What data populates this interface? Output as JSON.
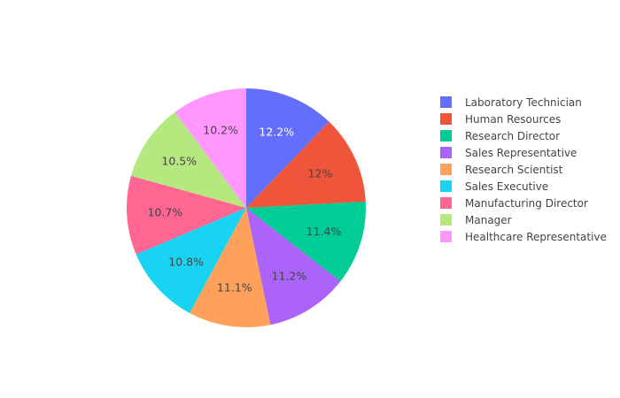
{
  "chart_data": {
    "type": "pie",
    "title": "",
    "legend_position": "right",
    "start_angle_deg": 90,
    "direction": "clockwise",
    "categories": [
      "Laboratory Technician",
      "Human Resources",
      "Research Director",
      "Sales Representative",
      "Research Scientist",
      "Sales Executive",
      "Manufacturing Director",
      "Manager",
      "Healthcare Representative"
    ],
    "values": [
      12.2,
      12.0,
      11.4,
      11.2,
      11.1,
      10.8,
      10.7,
      10.5,
      10.2
    ],
    "labels": [
      "12.2%",
      "12%",
      "11.4%",
      "11.2%",
      "11.1%",
      "10.8%",
      "10.7%",
      "10.5%",
      "10.2%"
    ],
    "colors": [
      "#636efa",
      "#ef553b",
      "#00cc96",
      "#ab63fa",
      "#ffa15a",
      "#19d3f3",
      "#ff6692",
      "#b6e880",
      "#ff97ff"
    ],
    "label_colors": [
      "#ffffff",
      "#444444",
      "#444444",
      "#444444",
      "#444444",
      "#444444",
      "#444444",
      "#444444",
      "#444444"
    ]
  }
}
